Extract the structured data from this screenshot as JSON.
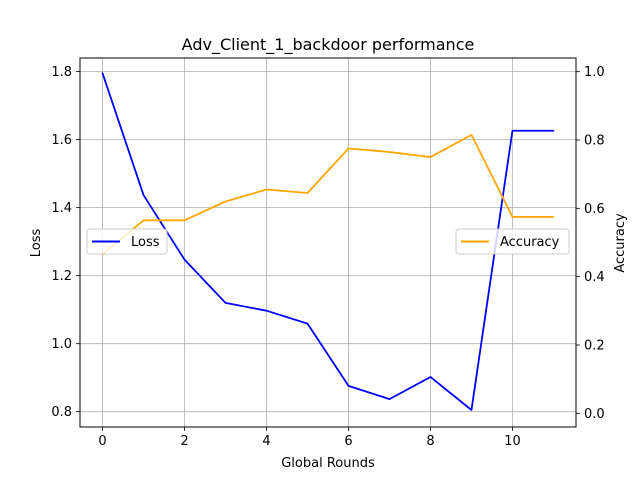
{
  "chart_data": {
    "type": "line",
    "title": "Adv_Client_1_backdoor performance",
    "xlabel": "Global Rounds",
    "ylabel_left": "Loss",
    "ylabel_right": "Accuracy",
    "x": [
      0,
      1,
      2,
      3,
      4,
      5,
      6,
      7,
      8,
      9,
      10,
      11
    ],
    "xlim": [
      -0.55,
      11.55
    ],
    "xticks": [
      0,
      2,
      4,
      6,
      8,
      10
    ],
    "ylim_left": [
      0.755,
      1.84
    ],
    "yticks_left": [
      "0.8",
      "1.0",
      "1.2",
      "1.4",
      "1.6",
      "1.8"
    ],
    "ylim_right": [
      -0.04,
      1.04
    ],
    "yticks_right": [
      "0.0",
      "0.2",
      "0.4",
      "0.6",
      "0.8",
      "1.0"
    ],
    "grid": true,
    "series": [
      {
        "name": "Loss",
        "axis": "left",
        "color": "#0000ff",
        "values": [
          1.795,
          1.437,
          1.247,
          1.12,
          1.097,
          1.059,
          0.876,
          0.837,
          0.902,
          0.805,
          1.626,
          1.626
        ],
        "legend_position": "center-left"
      },
      {
        "name": "Accuracy",
        "axis": "right",
        "color": "#ffa500",
        "values": [
          0.465,
          0.565,
          0.565,
          0.62,
          0.655,
          0.645,
          0.775,
          0.765,
          0.75,
          0.815,
          0.575,
          0.575
        ],
        "legend_position": "center-right"
      }
    ]
  }
}
